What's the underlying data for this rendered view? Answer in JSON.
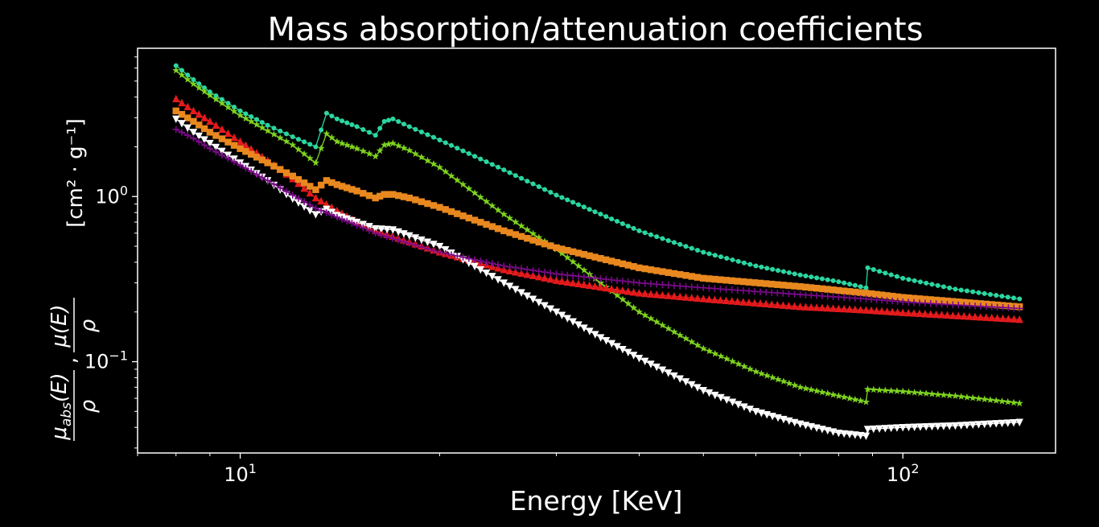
{
  "chart_data": {
    "type": "line",
    "title": "Mass absorption/attenuation coefficients",
    "xlabel": "Energy [KeV]",
    "ylabel": {
      "ratio1_num": "μ",
      "ratio1_sub": "abs",
      "ratio1_arg": "(E)",
      "ratio1_den": "ρ",
      "separator": ",",
      "ratio2_num": "μ(E)",
      "ratio2_den": "ρ",
      "units": "[cm² · g⁻¹]"
    },
    "x_scale": "log",
    "y_scale": "log",
    "xlim": [
      7,
      170
    ],
    "ylim": [
      0.028,
      7.9
    ],
    "xticks": [
      {
        "value": 10,
        "label_base": "10",
        "label_exp": "1"
      },
      {
        "value": 100,
        "label_base": "10",
        "label_exp": "2"
      }
    ],
    "yticks": [
      {
        "value": 0.1,
        "label_base": "10",
        "label_exp": "−1"
      },
      {
        "value": 1,
        "label_base": "10",
        "label_exp": "0"
      }
    ],
    "grid": false,
    "legend": "none",
    "background": "#000000",
    "foreground": "#ffffff",
    "series": [
      {
        "color": "#2bd6a0",
        "marker": "circle",
        "points": [
          [
            8,
            6.2
          ],
          [
            8.5,
            5.1
          ],
          [
            9,
            4.3
          ],
          [
            10,
            3.3
          ],
          [
            11,
            2.7
          ],
          [
            12,
            2.3
          ],
          [
            13,
            2.0
          ],
          [
            13.5,
            3.2
          ],
          [
            14,
            2.95
          ],
          [
            15,
            2.65
          ],
          [
            16,
            2.35
          ],
          [
            16.5,
            2.85
          ],
          [
            17,
            2.95
          ],
          [
            18,
            2.65
          ],
          [
            20,
            2.2
          ],
          [
            25,
            1.45
          ],
          [
            30,
            1.02
          ],
          [
            40,
            0.62
          ],
          [
            50,
            0.46
          ],
          [
            60,
            0.38
          ],
          [
            70,
            0.335
          ],
          [
            80,
            0.305
          ],
          [
            88,
            0.28
          ],
          [
            88.5,
            0.37
          ],
          [
            100,
            0.32
          ],
          [
            120,
            0.275
          ],
          [
            150,
            0.24
          ]
        ]
      },
      {
        "color": "#7ed320",
        "marker": "star",
        "points": [
          [
            8,
            5.8
          ],
          [
            8.5,
            4.8
          ],
          [
            9,
            4.1
          ],
          [
            10,
            3.1
          ],
          [
            11,
            2.5
          ],
          [
            12,
            2.05
          ],
          [
            13,
            1.6
          ],
          [
            13.5,
            2.4
          ],
          [
            14,
            2.15
          ],
          [
            15,
            1.95
          ],
          [
            16,
            1.75
          ],
          [
            16.5,
            2.05
          ],
          [
            17,
            2.1
          ],
          [
            18,
            1.9
          ],
          [
            20,
            1.5
          ],
          [
            25,
            0.78
          ],
          [
            30,
            0.48
          ],
          [
            35,
            0.3
          ],
          [
            40,
            0.2
          ],
          [
            50,
            0.12
          ],
          [
            60,
            0.087
          ],
          [
            70,
            0.07
          ],
          [
            80,
            0.062
          ],
          [
            88,
            0.057
          ],
          [
            88.5,
            0.068
          ],
          [
            100,
            0.066
          ],
          [
            120,
            0.062
          ],
          [
            150,
            0.056
          ]
        ]
      },
      {
        "color": "#e31a1c",
        "marker": "triangle-up",
        "points": [
          [
            8,
            3.9
          ],
          [
            8.5,
            3.3
          ],
          [
            9,
            2.85
          ],
          [
            10,
            2.15
          ],
          [
            11,
            1.65
          ],
          [
            12,
            1.28
          ],
          [
            13,
            0.98
          ],
          [
            14,
            0.82
          ],
          [
            15,
            0.7
          ],
          [
            16,
            0.62
          ],
          [
            18,
            0.53
          ],
          [
            20,
            0.46
          ],
          [
            25,
            0.36
          ],
          [
            30,
            0.31
          ],
          [
            40,
            0.26
          ],
          [
            50,
            0.24
          ],
          [
            70,
            0.215
          ],
          [
            88,
            0.205
          ],
          [
            100,
            0.198
          ],
          [
            150,
            0.18
          ]
        ]
      },
      {
        "color": "#e8881f",
        "marker": "square",
        "points": [
          [
            8,
            3.3
          ],
          [
            8.5,
            2.85
          ],
          [
            9,
            2.45
          ],
          [
            10,
            1.95
          ],
          [
            11,
            1.6
          ],
          [
            12,
            1.33
          ],
          [
            13,
            1.1
          ],
          [
            13.5,
            1.25
          ],
          [
            14,
            1.18
          ],
          [
            15,
            1.08
          ],
          [
            16,
            0.98
          ],
          [
            16.5,
            1.03
          ],
          [
            17,
            1.03
          ],
          [
            18,
            0.98
          ],
          [
            20,
            0.86
          ],
          [
            25,
            0.62
          ],
          [
            30,
            0.49
          ],
          [
            40,
            0.37
          ],
          [
            50,
            0.32
          ],
          [
            70,
            0.285
          ],
          [
            88,
            0.26
          ],
          [
            100,
            0.245
          ],
          [
            150,
            0.215
          ]
        ]
      },
      {
        "color": "#ffffff",
        "marker": "triangle-down",
        "points": [
          [
            8,
            2.95
          ],
          [
            8.5,
            2.45
          ],
          [
            9,
            2.1
          ],
          [
            10,
            1.6
          ],
          [
            11,
            1.25
          ],
          [
            12,
            0.97
          ],
          [
            13,
            0.78
          ],
          [
            13.5,
            0.84
          ],
          [
            14,
            0.77
          ],
          [
            15,
            0.7
          ],
          [
            16,
            0.64
          ],
          [
            17,
            0.63
          ],
          [
            18,
            0.58
          ],
          [
            20,
            0.5
          ],
          [
            25,
            0.3
          ],
          [
            30,
            0.2
          ],
          [
            35,
            0.14
          ],
          [
            40,
            0.105
          ],
          [
            50,
            0.067
          ],
          [
            60,
            0.05
          ],
          [
            70,
            0.042
          ],
          [
            80,
            0.037
          ],
          [
            88,
            0.0355
          ],
          [
            88.5,
            0.039
          ],
          [
            100,
            0.04
          ],
          [
            120,
            0.041
          ],
          [
            150,
            0.043
          ]
        ]
      },
      {
        "color": "#7b0a8a",
        "marker": "plus",
        "points": [
          [
            8,
            2.55
          ],
          [
            8.5,
            2.25
          ],
          [
            9,
            1.95
          ],
          [
            10,
            1.55
          ],
          [
            11,
            1.25
          ],
          [
            12,
            1.02
          ],
          [
            13,
            0.85
          ],
          [
            14,
            0.75
          ],
          [
            15,
            0.67
          ],
          [
            16,
            0.6
          ],
          [
            18,
            0.52
          ],
          [
            20,
            0.46
          ],
          [
            25,
            0.38
          ],
          [
            30,
            0.34
          ],
          [
            40,
            0.3
          ],
          [
            50,
            0.28
          ],
          [
            70,
            0.255
          ],
          [
            88,
            0.24
          ],
          [
            100,
            0.23
          ],
          [
            150,
            0.21
          ]
        ]
      }
    ]
  }
}
